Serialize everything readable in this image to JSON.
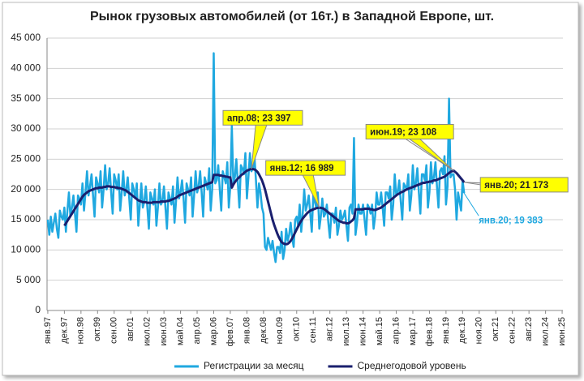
{
  "chart_data": {
    "type": "line",
    "title": "Рынок грузовых автомобилей (от 16т.) в Западной Европе, шт.",
    "categories": [
      "янв.97",
      null,
      null,
      null,
      null,
      null,
      null,
      null,
      null,
      null,
      null,
      "дек.97",
      null,
      null,
      null,
      null,
      null,
      null,
      null,
      null,
      null,
      null,
      "ноя.98",
      null,
      null,
      null,
      null,
      null,
      null,
      null,
      null,
      null,
      null,
      "окт.99",
      null,
      null,
      null,
      null,
      null,
      null,
      null,
      null,
      null,
      null,
      "сен.00",
      null,
      null,
      null,
      null,
      null,
      null,
      null,
      null,
      null,
      null,
      "авг.01",
      null,
      null,
      null,
      null,
      null,
      null,
      null,
      null,
      null,
      null,
      "июл.02",
      null,
      null,
      null,
      null,
      null,
      null,
      null,
      null,
      null,
      null,
      "июн.03",
      null,
      null,
      null,
      null,
      null,
      null,
      null,
      null,
      null,
      null,
      "май.04",
      null,
      null,
      null,
      null,
      null,
      null,
      null,
      null,
      null,
      null,
      "апр.05",
      null,
      null,
      null,
      null,
      null,
      null,
      null,
      null,
      null,
      null,
      "мар.06",
      null,
      null,
      null,
      null,
      null,
      null,
      null,
      null,
      null,
      null,
      "фев.07",
      null,
      null,
      null,
      null,
      null,
      null,
      null,
      null,
      null,
      null,
      "янв.08",
      null,
      null,
      null,
      null,
      null,
      null,
      null,
      null,
      null,
      null,
      "дек.08",
      null,
      null,
      null,
      null,
      null,
      null,
      null,
      null,
      null,
      null,
      "ноя.09",
      null,
      null,
      null,
      null,
      null,
      null,
      null,
      null,
      null,
      null,
      "окт.10",
      null,
      null,
      null,
      null,
      null,
      null,
      null,
      null,
      null,
      null,
      "сен.11",
      null,
      null,
      null,
      null,
      null,
      null,
      null,
      null,
      null,
      null,
      "авг.12",
      null,
      null,
      null,
      null,
      null,
      null,
      null,
      null,
      null,
      null,
      "июл.13",
      null,
      null,
      null,
      null,
      null,
      null,
      null,
      null,
      null,
      null,
      "июн.14",
      null,
      null,
      null,
      null,
      null,
      null,
      null,
      null,
      null,
      null,
      "май.15",
      null,
      null,
      null,
      null,
      null,
      null,
      null,
      null,
      null,
      null,
      "апр.16",
      null,
      null,
      null,
      null,
      null,
      null,
      null,
      null,
      null,
      null,
      "мар.17",
      null,
      null,
      null,
      null,
      null,
      null,
      null,
      null,
      null,
      null,
      "фев.18",
      null,
      null,
      null,
      null,
      null,
      null,
      null,
      null,
      null,
      null,
      "янв.19",
      null,
      null,
      null,
      null,
      null,
      null,
      null,
      null,
      null,
      null,
      "дек.19",
      null,
      null,
      null,
      null,
      null,
      null,
      null,
      null,
      null,
      null,
      "ноя.20",
      null,
      null,
      null,
      null,
      null,
      null,
      null,
      null,
      null,
      null,
      "окт.21",
      null,
      null,
      null,
      null,
      null,
      null,
      null,
      null,
      null,
      null,
      "сен.22",
      null,
      null,
      null,
      null,
      null,
      null,
      null,
      null,
      null,
      null,
      "авг.23",
      null,
      null,
      null,
      null,
      null,
      null,
      null,
      null,
      null,
      null,
      "июл.24",
      null,
      null,
      null,
      null,
      null,
      null,
      null,
      null,
      null,
      null,
      "июн.25"
    ],
    "series": [
      {
        "name": "Регистрации за месяц",
        "color": "#1fa8e0",
        "values": [
          15000,
          12500,
          15500,
          13000,
          14500,
          16000,
          13500,
          12000,
          16500,
          15500,
          15000,
          17000,
          13000,
          16500,
          19500,
          15500,
          17000,
          19000,
          16000,
          13000,
          19000,
          18500,
          17500,
          21000,
          16500,
          19500,
          23000,
          19000,
          20500,
          22500,
          19000,
          15500,
          22000,
          21000,
          19500,
          23000,
          17000,
          20000,
          24000,
          20000,
          21000,
          23500,
          19500,
          16000,
          22500,
          21500,
          20000,
          22500,
          16500,
          19500,
          23000,
          19000,
          20000,
          22000,
          18500,
          15000,
          21000,
          20000,
          18500,
          21000,
          14000,
          17500,
          21000,
          17000,
          18000,
          20500,
          17000,
          13500,
          19500,
          18500,
          17500,
          20000,
          14000,
          17000,
          21000,
          17500,
          18000,
          20500,
          17000,
          13500,
          19500,
          18500,
          17500,
          20500,
          14500,
          18000,
          22000,
          18500,
          19500,
          21500,
          18500,
          14500,
          21000,
          20000,
          19000,
          22000,
          15500,
          19000,
          23000,
          19500,
          20500,
          23000,
          19500,
          15500,
          22000,
          21000,
          20000,
          23500,
          16500,
          20000,
          42500,
          21000,
          21500,
          24000,
          20000,
          16500,
          23000,
          22000,
          21000,
          24500,
          17000,
          20500,
          30500,
          21000,
          22000,
          25000,
          21000,
          17000,
          24000,
          23500,
          22500,
          26000,
          18500,
          22000,
          26000,
          23000,
          23500,
          25500,
          21500,
          17000,
          21000,
          19500,
          17000,
          16000,
          10500,
          10000,
          12000,
          11000,
          10000,
          11500,
          9500,
          8000,
          10500,
          10500,
          9500,
          13000,
          8500,
          10000,
          13500,
          11500,
          12500,
          14500,
          12000,
          10500,
          15000,
          15500,
          14000,
          17500,
          13000,
          16000,
          20000,
          16500,
          17500,
          19000,
          16000,
          13000,
          19000,
          18000,
          17000,
          19500,
          13500,
          15500,
          18500,
          15500,
          16000,
          17500,
          14500,
          12000,
          16000,
          16000,
          14500,
          17000,
          12500,
          14000,
          16500,
          15000,
          15500,
          16500,
          14000,
          11500,
          17000,
          17500,
          16000,
          28500,
          12500,
          14500,
          17500,
          16000,
          16000,
          17500,
          15000,
          12500,
          17500,
          17000,
          16000,
          17500,
          13500,
          15500,
          19500,
          17500,
          17500,
          19500,
          17000,
          14000,
          19500,
          19500,
          18500,
          20500,
          15000,
          17500,
          22500,
          19000,
          19500,
          21500,
          18000,
          15000,
          21000,
          20500,
          20000,
          22500,
          16500,
          19000,
          24000,
          20000,
          21000,
          23500,
          19500,
          16000,
          22500,
          22500,
          21500,
          24000,
          17000,
          19500,
          24500,
          21000,
          22000,
          24500,
          20500,
          17000,
          23000,
          23500,
          22500,
          25500,
          17500,
          20500,
          35000,
          22000,
          22500,
          22500,
          20000,
          15000,
          19500,
          18000,
          16500,
          21500,
          19383,
          null,
          null,
          null,
          null,
          null,
          null,
          null,
          null,
          null,
          null,
          null,
          null,
          null,
          null,
          null,
          null,
          null,
          null,
          null,
          null,
          null,
          null,
          null,
          null,
          null,
          null,
          null,
          null,
          null,
          null,
          null,
          null,
          null,
          null,
          null,
          null,
          null,
          null,
          null,
          null,
          null,
          null,
          null,
          null,
          null,
          null,
          null,
          null,
          null,
          null,
          null,
          null,
          null,
          null,
          null,
          null,
          null,
          null,
          null,
          null,
          null,
          null,
          null,
          null,
          null
        ]
      },
      {
        "name": "Среднегодовой уровень",
        "color": "#1a1f6e",
        "values": [
          null,
          null,
          null,
          null,
          null,
          null,
          null,
          null,
          null,
          null,
          null,
          14000,
          14400,
          14800,
          15200,
          15600,
          16000,
          16400,
          16800,
          17200,
          17600,
          18000,
          18400,
          18800,
          19100,
          19300,
          19500,
          19700,
          19800,
          19900,
          20000,
          20100,
          20200,
          20200,
          20300,
          20300,
          20300,
          20400,
          20400,
          20500,
          20500,
          20500,
          20400,
          20400,
          20400,
          20300,
          20300,
          20200,
          20200,
          20100,
          20000,
          19900,
          19800,
          19600,
          19400,
          19200,
          19000,
          18800,
          18600,
          18400,
          18200,
          18100,
          18000,
          17900,
          17900,
          17900,
          17800,
          17800,
          17800,
          17800,
          17900,
          17900,
          17900,
          17900,
          17900,
          18000,
          18000,
          18000,
          18000,
          18100,
          18100,
          18200,
          18300,
          18400,
          18500,
          18600,
          18800,
          19000,
          19100,
          19200,
          19300,
          19400,
          19500,
          19600,
          19700,
          19800,
          19900,
          20000,
          20100,
          20200,
          20300,
          20400,
          20500,
          20600,
          20700,
          20800,
          20900,
          21000,
          21100,
          21200,
          22400,
          22400,
          22400,
          22400,
          22300,
          22300,
          22200,
          22200,
          22100,
          22100,
          22000,
          22000,
          20300,
          20800,
          21200,
          21500,
          21800,
          22000,
          22300,
          22500,
          22700,
          22900,
          23100,
          23200,
          23300,
          23397,
          23350,
          23300,
          23150,
          22900,
          22500,
          22000,
          21500,
          20800,
          20000,
          19000,
          18000,
          17000,
          16000,
          15000,
          14200,
          13500,
          12800,
          12200,
          11700,
          11300,
          11100,
          11000,
          10950,
          11000,
          11200,
          11500,
          11900,
          12400,
          12900,
          13400,
          13900,
          14400,
          14800,
          15200,
          15500,
          15800,
          16100,
          16300,
          16500,
          16600,
          16700,
          16800,
          16900,
          16950,
          16989,
          16950,
          16900,
          16800,
          16600,
          16400,
          16200,
          16000,
          15800,
          15600,
          15400,
          15200,
          15000,
          14800,
          14700,
          14600,
          14500,
          14500,
          14400,
          14400,
          14500,
          14700,
          14900,
          15200,
          16700,
          16700,
          16700,
          16700,
          16700,
          16700,
          16800,
          16800,
          16800,
          16800,
          16700,
          16700,
          16600,
          16600,
          16700,
          16800,
          16900,
          17000,
          17200,
          17400,
          17600,
          17800,
          18000,
          18200,
          18400,
          18600,
          18800,
          19000,
          19200,
          19300,
          19500,
          19600,
          19700,
          19900,
          20000,
          20100,
          20200,
          20300,
          20400,
          20500,
          20600,
          20700,
          20800,
          20900,
          21000,
          21100,
          21100,
          21200,
          21200,
          21300,
          21300,
          21400,
          21500,
          21500,
          21600,
          21700,
          21800,
          21900,
          22000,
          22100,
          22300,
          22500,
          22700,
          22900,
          23000,
          23108,
          22900,
          22700,
          22400,
          22100,
          21800,
          21500,
          21173,
          null,
          null,
          null,
          null,
          null,
          null,
          null,
          null,
          null,
          null,
          null,
          null,
          null,
          null,
          null,
          null,
          null,
          null,
          null,
          null,
          null,
          null,
          null,
          null,
          null,
          null,
          null,
          null,
          null,
          null,
          null,
          null,
          null,
          null,
          null,
          null,
          null,
          null,
          null,
          null,
          null,
          null,
          null,
          null,
          null,
          null,
          null,
          null,
          null,
          null,
          null,
          null,
          null,
          null,
          null,
          null,
          null,
          null,
          null,
          null,
          null,
          null,
          null,
          null,
          null
        ]
      }
    ],
    "annotations": [
      {
        "text": "апр.08;  23 397",
        "series": 1,
        "index": 135
      },
      {
        "text": "янв.12;  16 989",
        "series": 1,
        "index": 180
      },
      {
        "text": "июн.19;  23 108",
        "series": 1,
        "index": 269
      },
      {
        "text": "янв.20;  21 173",
        "series": 1,
        "index": 276
      },
      {
        "text": "янв.20; 19 383",
        "series": 0,
        "index": 276
      }
    ],
    "ylim": [
      0,
      45000
    ],
    "yticks": [
      0,
      {
        "value": 5000,
        "label": "5 000"
      },
      {
        "value": 10000,
        "label": "10 000"
      },
      {
        "value": 15000,
        "label": "15 000"
      },
      {
        "value": 20000,
        "label": "20 000"
      },
      {
        "value": 25000,
        "label": "25 000"
      },
      {
        "value": 30000,
        "label": "30 000"
      },
      {
        "value": 35000,
        "label": "35 000"
      },
      {
        "value": 40000,
        "label": "40 000"
      },
      {
        "value": 45000,
        "label": "45 000"
      }
    ],
    "grid": true,
    "legend": "bottom"
  }
}
